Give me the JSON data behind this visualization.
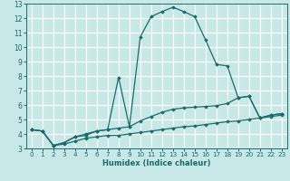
{
  "xlabel": "Humidex (Indice chaleur)",
  "bg_color": "#c8e8e8",
  "grid_color": "#ffffff",
  "line_color": "#1a6b6b",
  "xlim": [
    -0.5,
    23.5
  ],
  "ylim": [
    3,
    13
  ],
  "xticks": [
    0,
    1,
    2,
    3,
    4,
    5,
    6,
    7,
    8,
    9,
    10,
    11,
    12,
    13,
    14,
    15,
    16,
    17,
    18,
    19,
    20,
    21,
    22,
    23
  ],
  "yticks": [
    3,
    4,
    5,
    6,
    7,
    8,
    9,
    10,
    11,
    12,
    13
  ],
  "series": [
    {
      "x": [
        0,
        1,
        2,
        3,
        4,
        5,
        6,
        7,
        8,
        9,
        10,
        11,
        12,
        13,
        14,
        15,
        16,
        17,
        18,
        19,
        20,
        21,
        22,
        23
      ],
      "y": [
        4.3,
        4.2,
        3.2,
        3.3,
        3.5,
        3.7,
        3.8,
        3.9,
        3.9,
        4.0,
        4.1,
        4.2,
        4.3,
        4.4,
        4.5,
        4.55,
        4.65,
        4.75,
        4.85,
        4.9,
        5.0,
        5.1,
        5.2,
        5.3
      ]
    },
    {
      "x": [
        0,
        1,
        2,
        3,
        4,
        5,
        6,
        7,
        8,
        9,
        10,
        11,
        12,
        13,
        14,
        15,
        16,
        17,
        18,
        19,
        20,
        21,
        22,
        23
      ],
      "y": [
        4.3,
        4.2,
        3.2,
        3.4,
        3.8,
        4.0,
        4.2,
        4.3,
        4.4,
        4.5,
        4.9,
        5.2,
        5.5,
        5.7,
        5.8,
        5.85,
        5.9,
        5.95,
        6.1,
        6.5,
        6.6,
        5.1,
        5.3,
        5.4
      ]
    },
    {
      "x": [
        0,
        1,
        2,
        3,
        4,
        5,
        6,
        7,
        8,
        9,
        10,
        11,
        12,
        13,
        14,
        15,
        16,
        17,
        18,
        19,
        20,
        21,
        22,
        23
      ],
      "y": [
        4.3,
        4.2,
        3.2,
        3.4,
        3.8,
        3.9,
        4.2,
        4.3,
        7.9,
        4.5,
        10.7,
        12.1,
        12.45,
        12.75,
        12.45,
        12.1,
        10.5,
        8.8,
        8.7,
        6.5,
        6.6,
        5.1,
        5.3,
        5.4
      ]
    }
  ]
}
